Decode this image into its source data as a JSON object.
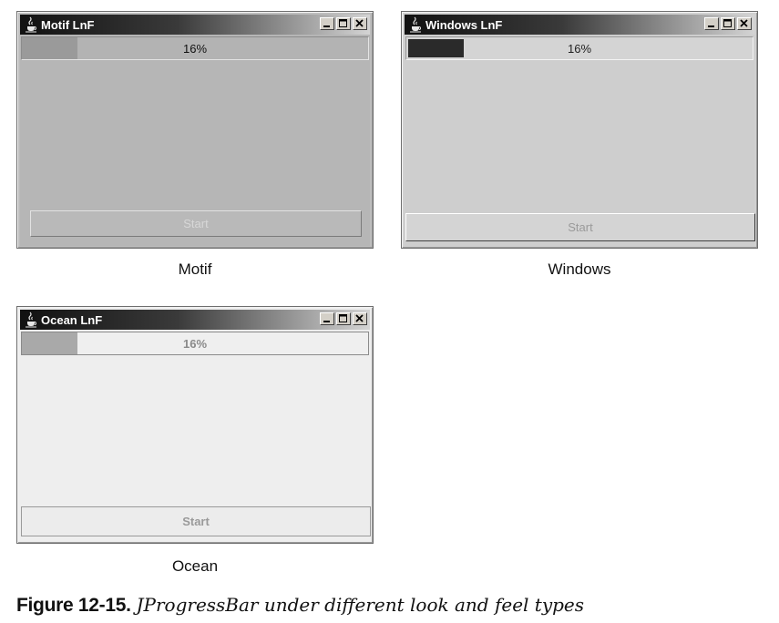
{
  "windows": {
    "motif": {
      "title": "Motif LnF",
      "progress": {
        "label": "16%",
        "value": 16
      },
      "start_label": "Start",
      "caption": "Motif"
    },
    "windows": {
      "title": "Windows LnF",
      "progress": {
        "label": "16%",
        "value": 16
      },
      "start_label": "Start",
      "caption": "Windows"
    },
    "ocean": {
      "title": "Ocean LnF",
      "progress": {
        "label": "16%",
        "value": 16
      },
      "start_label": "Start",
      "caption": "Ocean"
    }
  },
  "figure": {
    "number": "Figure 12-15.",
    "text": "JProgressBar under different look and feel types"
  },
  "icons": {
    "app": "java-cup-icon",
    "minimize": "minimize-icon",
    "maximize": "maximize-icon",
    "close": "close-icon"
  }
}
